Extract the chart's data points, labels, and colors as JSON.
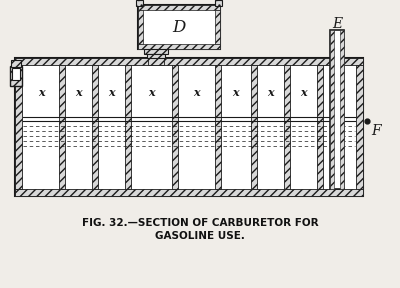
{
  "bg_color": "#f0ede8",
  "line_color": "#1a1a1a",
  "fig_width": 4.0,
  "fig_height": 2.88,
  "caption_line1": "FIG. 32.—SECTION OF CARBURETOR FOR",
  "caption_line2": "GASOLINE USE.",
  "label_D": "D",
  "label_E": "E",
  "label_F": "F",
  "label_X": "x"
}
